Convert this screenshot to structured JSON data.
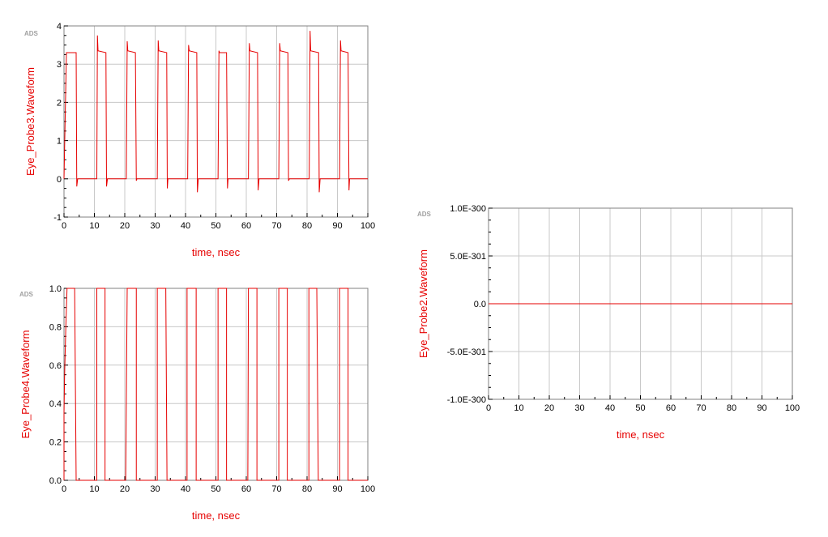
{
  "chart_data": [
    {
      "id": "probe3",
      "type": "line",
      "watermark": "ADS",
      "xlabel": "time, nsec",
      "ylabel": "Eye_Probe3.Waveform",
      "xlim": [
        0,
        100
      ],
      "ylim": [
        -1,
        4
      ],
      "xticks": [
        0,
        10,
        20,
        30,
        40,
        50,
        60,
        70,
        80,
        90,
        100
      ],
      "yticks": [
        -1,
        0,
        1,
        2,
        3,
        4
      ],
      "ytick_labels": [
        "-1",
        "0",
        "1",
        "2",
        "3",
        "4"
      ],
      "grid": true,
      "color": "#e60000",
      "series": [
        {
          "x": [
            0,
            0.8,
            1.0,
            1.3,
            4.0,
            4.2,
            4.5,
            10.8,
            11.0,
            11.2,
            13.8,
            14.0,
            14.3,
            20.5,
            20.8,
            21.0,
            23.5,
            23.8,
            24.0,
            30.7,
            31.0,
            31.2,
            33.8,
            34.0,
            34.2,
            40.7,
            41.0,
            41.2,
            43.7,
            43.9,
            44.2,
            50.7,
            51.0,
            51.2,
            53.5,
            53.8,
            54.0,
            60.7,
            61.0,
            61.2,
            63.7,
            63.9,
            64.2,
            70.7,
            71.0,
            71.2,
            73.7,
            73.9,
            74.2,
            80.7,
            81.0,
            81.2,
            83.8,
            84.0,
            84.3,
            90.7,
            91.0,
            91.2,
            93.5,
            93.8,
            94.0,
            100
          ],
          "y": [
            0.0,
            3.3,
            3.3,
            3.3,
            3.3,
            -0.2,
            0.0,
            0.0,
            3.75,
            3.35,
            3.3,
            -0.2,
            0.0,
            0.0,
            3.6,
            3.35,
            3.3,
            -0.05,
            0.0,
            0.0,
            3.62,
            3.35,
            3.3,
            -0.25,
            0.0,
            0.0,
            3.5,
            3.35,
            3.3,
            -0.35,
            0.0,
            0.0,
            3.35,
            3.3,
            3.3,
            -0.25,
            0.0,
            0.0,
            3.55,
            3.35,
            3.3,
            -0.3,
            0.0,
            0.0,
            3.55,
            3.35,
            3.3,
            -0.05,
            0.0,
            0.0,
            3.87,
            3.35,
            3.3,
            -0.35,
            0.0,
            0.0,
            3.62,
            3.35,
            3.3,
            -0.3,
            0.0,
            0.0
          ]
        }
      ]
    },
    {
      "id": "probe4",
      "type": "line",
      "watermark": "ADS",
      "xlabel": "time, nsec",
      "ylabel": "Eye_Probe4.Waveform",
      "xlim": [
        0,
        100
      ],
      "ylim": [
        0,
        1
      ],
      "xticks": [
        0,
        10,
        20,
        30,
        40,
        50,
        60,
        70,
        80,
        90,
        100
      ],
      "yticks": [
        0,
        0.2,
        0.4,
        0.6,
        0.8,
        1.0
      ],
      "ytick_labels": [
        "0.0",
        "0.2",
        "0.4",
        "0.6",
        "0.8",
        "1.0"
      ],
      "grid": true,
      "color": "#e60000",
      "series": [
        {
          "x": [
            0,
            0,
            0.2,
            0.6,
            1.0,
            3.5,
            4.0,
            4.0,
            10.8,
            10.8,
            13.5,
            13.5,
            20.3,
            20.8,
            20.8,
            23.8,
            23.8,
            30.7,
            30.7,
            33.5,
            33.9,
            33.9,
            40.5,
            40.5,
            43.5,
            43.5,
            50.7,
            50.7,
            53.5,
            53.5,
            60.5,
            60.7,
            60.7,
            63.5,
            63.5,
            70.7,
            70.7,
            73.5,
            73.5,
            80.6,
            80.6,
            83.2,
            83.7,
            83.7,
            90.7,
            90.7,
            93.5,
            93.5,
            100
          ],
          "y": [
            0.0,
            0.35,
            0.55,
            0.8,
            1.0,
            1.0,
            0.0,
            0.0,
            0.0,
            1.0,
            1.0,
            0.0,
            0.0,
            1.0,
            1.0,
            1.0,
            0.0,
            0.0,
            1.0,
            1.0,
            0.0,
            0.0,
            0.0,
            1.0,
            1.0,
            0.0,
            0.0,
            1.0,
            1.0,
            0.0,
            0.0,
            1.0,
            1.0,
            1.0,
            0.0,
            0.0,
            1.0,
            1.0,
            0.0,
            0.0,
            1.0,
            1.0,
            0.0,
            0.0,
            0.0,
            1.0,
            1.0,
            0.0,
            0.0
          ]
        }
      ]
    },
    {
      "id": "probe2",
      "type": "line",
      "watermark": "ADS",
      "xlabel": "time, nsec",
      "ylabel": "Eye_Probe2.Waveform",
      "xlim": [
        0,
        100
      ],
      "ylim": [
        -1e-300,
        1e-300
      ],
      "xticks": [
        0,
        10,
        20,
        30,
        40,
        50,
        60,
        70,
        80,
        90,
        100
      ],
      "yticks": [
        -1e-300,
        -5e-301,
        0,
        5e-301,
        1e-300
      ],
      "ytick_labels": [
        "-1.0E-300",
        "-5.0E-301",
        "0.0",
        "5.0E-301",
        "1.0E-300"
      ],
      "grid": true,
      "color": "#e60000",
      "series": [
        {
          "x": [
            0,
            100
          ],
          "y": [
            0,
            0
          ]
        }
      ]
    }
  ]
}
